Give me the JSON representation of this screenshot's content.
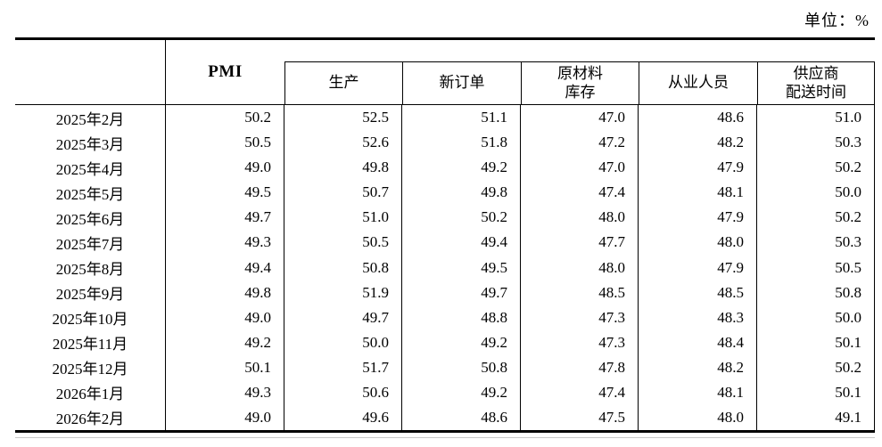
{
  "unit_label": "单位：%",
  "table": {
    "header": {
      "pmi": "PMI",
      "sub": [
        "生产",
        "新订单",
        "原材料\n库存",
        "从业人员",
        "供应商\n配送时间"
      ]
    },
    "rows": [
      {
        "date": "2025年2月",
        "values": [
          "50.2",
          "52.5",
          "51.1",
          "47.0",
          "48.6",
          "51.0"
        ]
      },
      {
        "date": "2025年3月",
        "values": [
          "50.5",
          "52.6",
          "51.8",
          "47.2",
          "48.2",
          "50.3"
        ]
      },
      {
        "date": "2025年4月",
        "values": [
          "49.0",
          "49.8",
          "49.2",
          "47.0",
          "47.9",
          "50.2"
        ]
      },
      {
        "date": "2025年5月",
        "values": [
          "49.5",
          "50.7",
          "49.8",
          "47.4",
          "48.1",
          "50.0"
        ]
      },
      {
        "date": "2025年6月",
        "values": [
          "49.7",
          "51.0",
          "50.2",
          "48.0",
          "47.9",
          "50.2"
        ]
      },
      {
        "date": "2025年7月",
        "values": [
          "49.3",
          "50.5",
          "49.4",
          "47.7",
          "48.0",
          "50.3"
        ]
      },
      {
        "date": "2025年8月",
        "values": [
          "49.4",
          "50.8",
          "49.5",
          "48.0",
          "47.9",
          "50.5"
        ]
      },
      {
        "date": "2025年9月",
        "values": [
          "49.8",
          "51.9",
          "49.7",
          "48.5",
          "48.5",
          "50.8"
        ]
      },
      {
        "date": "2025年10月",
        "values": [
          "49.0",
          "49.7",
          "48.8",
          "47.3",
          "48.3",
          "50.0"
        ]
      },
      {
        "date": "2025年11月",
        "values": [
          "49.2",
          "50.0",
          "49.2",
          "47.3",
          "48.4",
          "50.1"
        ]
      },
      {
        "date": "2025年12月",
        "values": [
          "50.1",
          "51.7",
          "50.8",
          "47.8",
          "48.2",
          "50.2"
        ]
      },
      {
        "date": "2026年1月",
        "values": [
          "49.3",
          "50.6",
          "49.2",
          "47.4",
          "48.1",
          "50.1"
        ]
      },
      {
        "date": "2026年2月",
        "values": [
          "49.0",
          "49.6",
          "48.6",
          "47.5",
          "48.0",
          "49.1"
        ]
      }
    ],
    "colors": {
      "text": "#000000",
      "border": "#000000",
      "background": "#ffffff"
    }
  }
}
